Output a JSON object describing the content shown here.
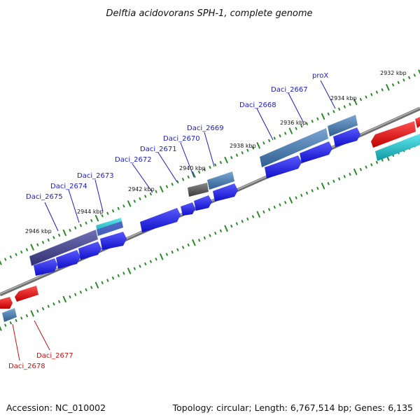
{
  "title": "Delftia acidovorans SPH-1, complete genome",
  "footer": {
    "accession": "Accession: NC_010002",
    "summary": "Topology: circular; Length: 6,767,514 bp; Genes: 6,135"
  },
  "colors": {
    "label_blue": "#1a1acc",
    "label_red": "#cc1111",
    "tick_green": "#2a8a2a",
    "backbone": "#8a8a8a",
    "forward_blue": "#2222dd",
    "reverse_red": "#e01818",
    "steel_blue": "#4f7fb0",
    "slate": "#4a4a90",
    "cyan": "#1ab8c0",
    "gray": "#555555"
  },
  "kbp_ticks": [
    "2946 kbp",
    "2944 kbp",
    "2942 kbp",
    "2940 kbp",
    "2938 kbp",
    "2936 kbp",
    "2934 kbp",
    "2932 kbp"
  ],
  "gene_labels_blue": [
    "Daci_2675",
    "Daci_2674",
    "Daci_2673",
    "Daci_2672",
    "Daci_2671",
    "Daci_2670",
    "Daci_2669",
    "Daci_2668",
    "Daci_2667",
    "proX"
  ],
  "gene_labels_red": [
    "Daci_2678",
    "Daci_2677"
  ]
}
